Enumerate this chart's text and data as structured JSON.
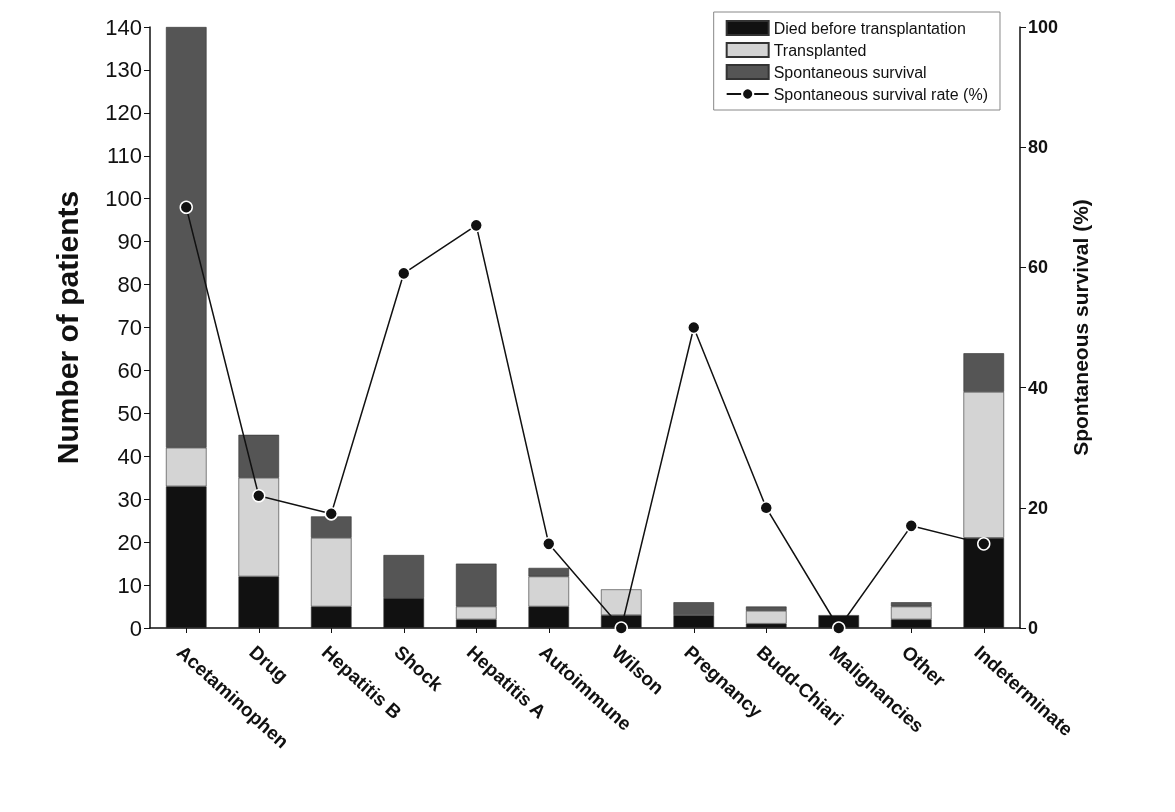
{
  "chart_data": {
    "type": "bar",
    "stacked": true,
    "ylabel": "Number of patients",
    "y2label": "Spontaneous survival (%)",
    "categories": [
      "Acetaminophen",
      "Drug",
      "Hepatitis B",
      "Shock",
      "Hepatitis A",
      "Autoimmune",
      "Wilson",
      "Pregnancy",
      "Budd-Chiari",
      "Malignancies",
      "Other",
      "Indeterminate"
    ],
    "series": [
      {
        "name": "Died before transplantation",
        "color": "#111111",
        "values": [
          33,
          12,
          5,
          7,
          2,
          5,
          3,
          3,
          1,
          3,
          2,
          21
        ]
      },
      {
        "name": "Transplanted",
        "color": "#d4d4d4",
        "values": [
          9,
          23,
          16,
          0,
          3,
          7,
          6,
          0,
          3,
          0,
          3,
          34
        ]
      },
      {
        "name": "Spontaneous survival",
        "color": "#555555",
        "values": [
          98,
          10,
          5,
          10,
          10,
          2,
          0,
          3,
          1,
          0,
          1,
          9
        ]
      },
      {
        "name": "Spontaneous survival rate (%)",
        "type": "line",
        "axis": "y2",
        "color": "#111111",
        "values": [
          70,
          22,
          19,
          59,
          67,
          14,
          0,
          50,
          20,
          0,
          17,
          14
        ]
      }
    ],
    "ylim": [
      0,
      140
    ],
    "yticks": [
      0,
      10,
      20,
      30,
      40,
      50,
      60,
      70,
      80,
      90,
      100,
      110,
      120,
      130,
      140
    ],
    "y2lim": [
      0,
      100
    ],
    "y2ticks": [
      0,
      20,
      40,
      60,
      80,
      100
    ],
    "legend": "top right",
    "marker": "circle",
    "line_style": "solid",
    "grid": false
  }
}
